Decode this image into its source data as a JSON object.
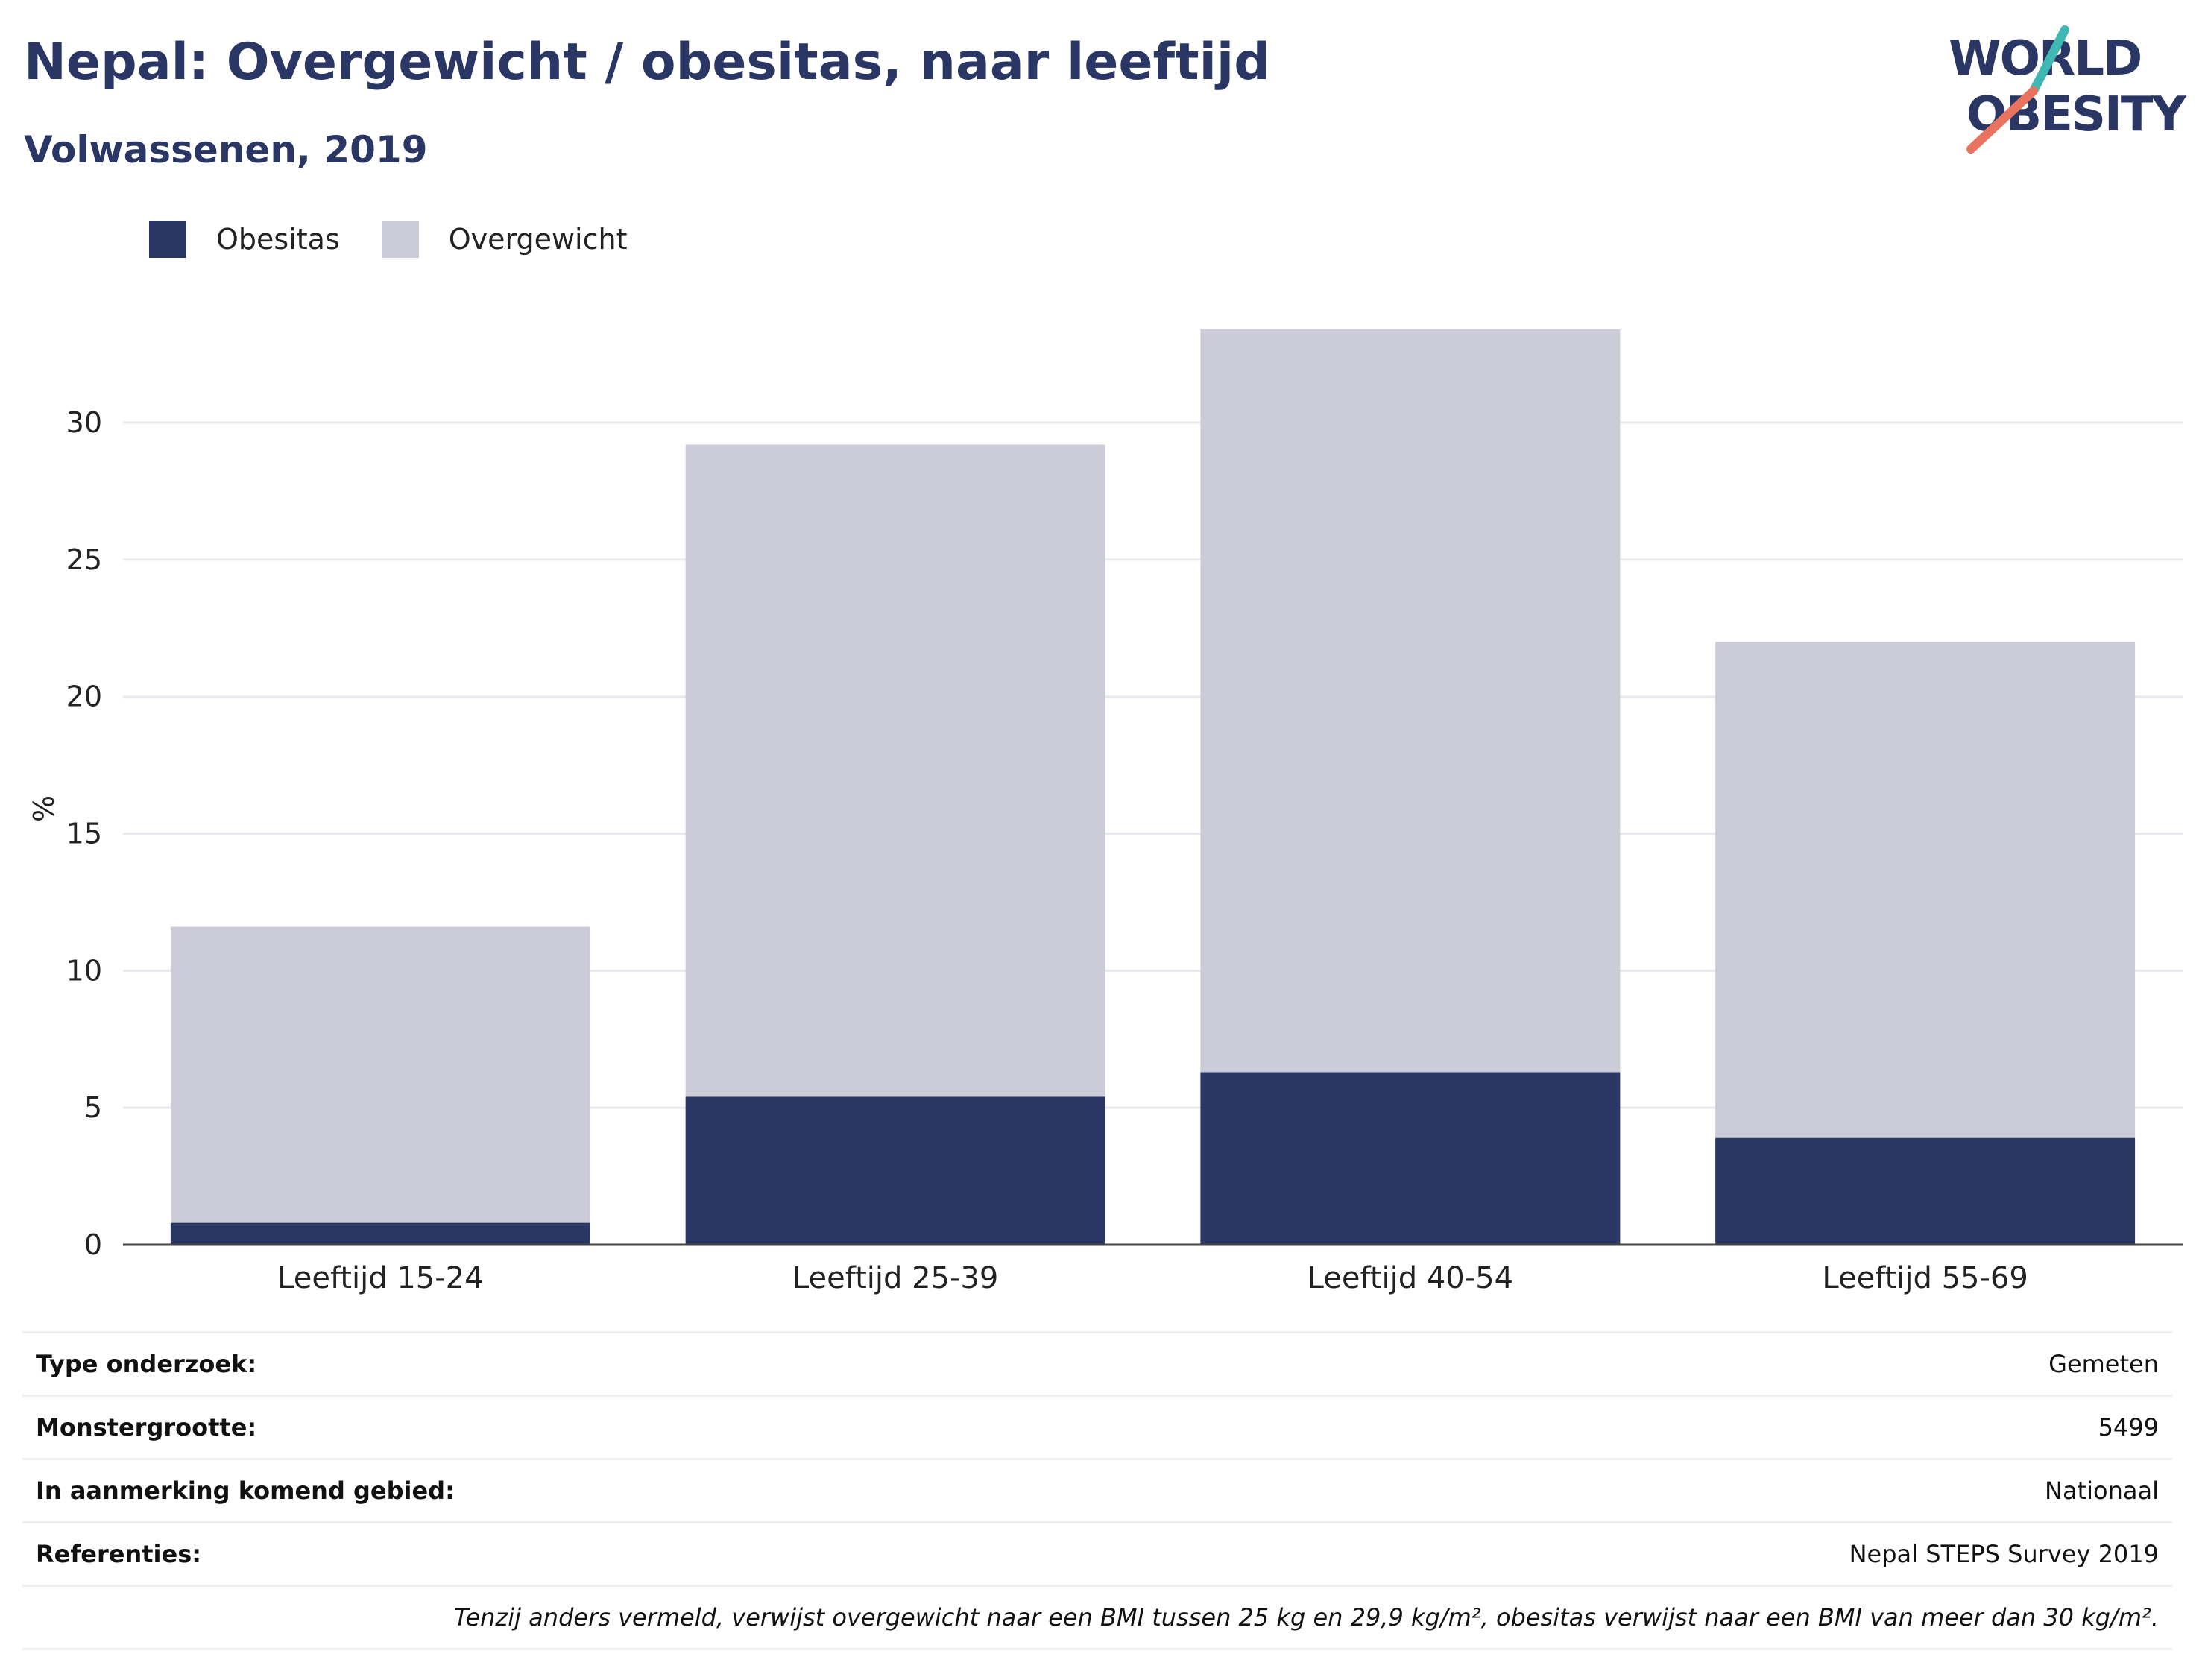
{
  "header": {
    "title": "Nepal: Overgewicht / obesitas, naar leeftijd",
    "subtitle": "Volwassenen, 2019"
  },
  "logo": {
    "line1": "WORLD",
    "line2": "OBESITY"
  },
  "colors": {
    "obesitas": "#2a3663",
    "overgewicht": "#cbccd8",
    "logo_teal": "#3fb8b3",
    "logo_coral": "#e8735f"
  },
  "chart_data": {
    "type": "bar",
    "stacked": true,
    "categories": [
      "Leeftijd 15-24",
      "Leeftijd 25-39",
      "Leeftijd 40-54",
      "Leeftijd 55-69"
    ],
    "series": [
      {
        "name": "Obesitas",
        "values": [
          0.8,
          5.4,
          6.3,
          3.9
        ]
      },
      {
        "name": "Overgewicht",
        "values": [
          10.8,
          23.8,
          27.1,
          18.1
        ]
      }
    ],
    "ylabel": "%",
    "ylim": [
      0,
      34
    ],
    "yticks": [
      0,
      5,
      10,
      15,
      20,
      25,
      30
    ],
    "grid": true,
    "legend_position": "top-left"
  },
  "info": {
    "rows": [
      {
        "label": "Type onderzoek:",
        "value": "Gemeten"
      },
      {
        "label": "Monstergrootte:",
        "value": "5499"
      },
      {
        "label": "In aanmerking komend gebied:",
        "value": "Nationaal"
      },
      {
        "label": "Referenties:",
        "value": "Nepal STEPS Survey 2019"
      }
    ],
    "note": "Tenzij anders vermeld, verwijst overgewicht naar een BMI tussen 25 kg en 29,9 kg/m², obesitas verwijst naar een BMI van meer dan 30 kg/m²."
  }
}
